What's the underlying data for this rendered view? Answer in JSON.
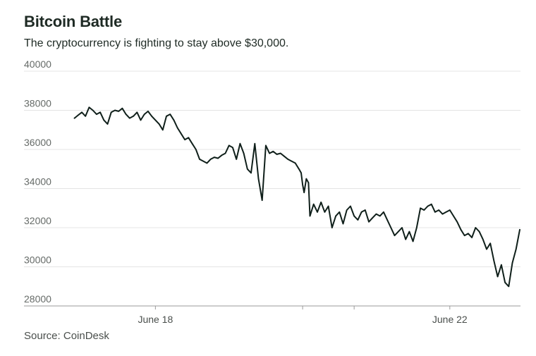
{
  "title": "Bitcoin Battle",
  "subtitle": "The cryptocurrency is fighting to stay above $30,000.",
  "source": "Source: CoinDesk",
  "colors": {
    "line": "#0f1f1a",
    "grid": "#e4e4e4",
    "axis": "#9a9a9a",
    "text": "#1e2a24"
  },
  "chart_data": {
    "type": "line",
    "title": "Bitcoin Battle",
    "subtitle": "The cryptocurrency is fighting to stay above $30,000.",
    "xlabel": "",
    "ylabel": "",
    "ylim": [
      28000,
      40000
    ],
    "yticks": [
      28000,
      30000,
      32000,
      34000,
      36000,
      38000,
      40000
    ],
    "xlim": [
      16.77,
      22.96
    ],
    "x_tick_positions": [
      18,
      20,
      20.7,
      22
    ],
    "x_tick_labels": [
      "June 18",
      "",
      "",
      "June 22"
    ],
    "grid": true,
    "series": [
      {
        "x": [
          16.9,
          16.95,
          17.0,
          17.05,
          17.1,
          17.15,
          17.2,
          17.25,
          17.3,
          17.35,
          17.4,
          17.45,
          17.5,
          17.55,
          17.6,
          17.65,
          17.7,
          17.75,
          17.8,
          17.85,
          17.9,
          17.95,
          18.0,
          18.05,
          18.1,
          18.15,
          18.2,
          18.25,
          18.3,
          18.35,
          18.4,
          18.45,
          18.5,
          18.55,
          18.6,
          18.65,
          18.7,
          18.75,
          18.8,
          18.85,
          18.9,
          18.95,
          19.0,
          19.05,
          19.1,
          19.15,
          19.2,
          19.25,
          19.3,
          19.35,
          19.4,
          19.45,
          19.5,
          19.55,
          19.6,
          19.65,
          19.7,
          19.75,
          19.8,
          19.85,
          19.9,
          19.95,
          19.98,
          20.0,
          20.02,
          20.05,
          20.08,
          20.1,
          20.15,
          20.2,
          20.25,
          20.3,
          20.35,
          20.4,
          20.45,
          20.5,
          20.55,
          20.6,
          20.65,
          20.7,
          20.75,
          20.8,
          20.85,
          20.9,
          20.95,
          21.0,
          21.05,
          21.1,
          21.15,
          21.2,
          21.25,
          21.3,
          21.35,
          21.4,
          21.45,
          21.5,
          21.55,
          21.6,
          21.65,
          21.7,
          21.75,
          21.8,
          21.85,
          21.9,
          21.95,
          22.0,
          22.05,
          22.1,
          22.15,
          22.2,
          22.25,
          22.3,
          22.35,
          22.4,
          22.45,
          22.5,
          22.55,
          22.6,
          22.65,
          22.7,
          22.75,
          22.8,
          22.85,
          22.9,
          22.95
        ],
        "y": [
          37600,
          37750,
          37900,
          37700,
          38150,
          38000,
          37800,
          37900,
          37500,
          37300,
          37900,
          38000,
          37950,
          38100,
          37800,
          37600,
          37700,
          37900,
          37500,
          37800,
          37950,
          37700,
          37500,
          37300,
          37000,
          37700,
          37800,
          37500,
          37100,
          36800,
          36500,
          36600,
          36300,
          36000,
          35500,
          35400,
          35300,
          35500,
          35600,
          35550,
          35700,
          35800,
          36200,
          36100,
          35500,
          36300,
          35800,
          35000,
          34800,
          36300,
          34500,
          33400,
          36200,
          35800,
          35900,
          35750,
          35800,
          35650,
          35500,
          35400,
          35300,
          35000,
          34800,
          34200,
          33800,
          34500,
          34300,
          32600,
          33200,
          32800,
          33300,
          32800,
          33100,
          32000,
          32600,
          32800,
          32200,
          32900,
          33100,
          32600,
          32400,
          32800,
          32900,
          32300,
          32500,
          32700,
          32600,
          32800,
          32400,
          32000,
          31600,
          31800,
          32000,
          31400,
          31800,
          31300,
          32000,
          33000,
          32900,
          33100,
          33200,
          32800,
          32900,
          32700,
          32800,
          32900,
          32600,
          32300,
          31900,
          31600,
          31700,
          31500,
          32000,
          31800,
          31400,
          30900,
          31200,
          30300,
          29500,
          30100,
          29200,
          29000,
          30200,
          30900,
          31900
        ]
      }
    ]
  }
}
